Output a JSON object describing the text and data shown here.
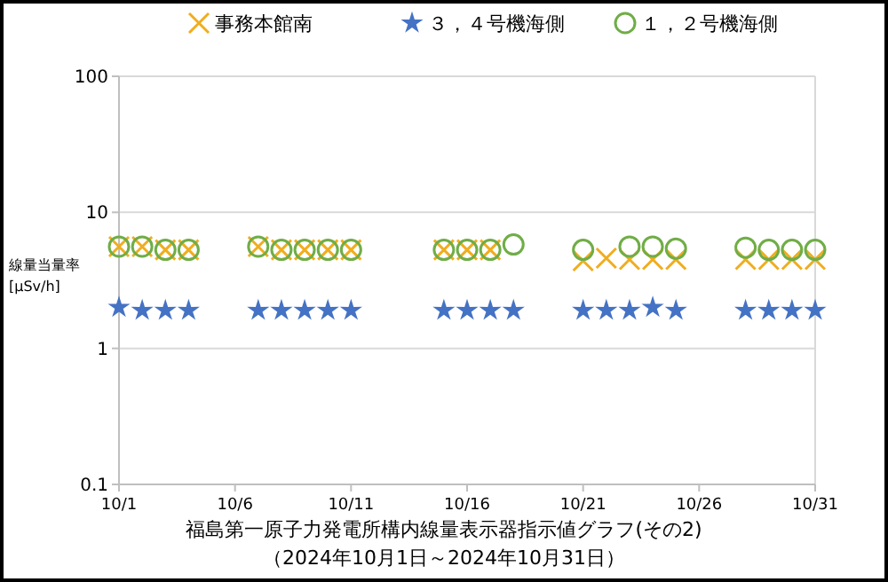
{
  "chart_data": {
    "type": "scatter",
    "title": "福島第一原子力発電所構内線量表示器指示値グラフ(その2)",
    "subtitle": "（2024年10月1日～2024年10月31日）",
    "ylabel": "線量当量率\n[μSv/h]",
    "x": [
      "2024-10-01",
      "2024-10-02",
      "2024-10-03",
      "2024-10-04",
      "2024-10-07",
      "2024-10-08",
      "2024-10-09",
      "2024-10-10",
      "2024-10-11",
      "2024-10-15",
      "2024-10-16",
      "2024-10-17",
      "2024-10-18",
      "2024-10-21",
      "2024-10-22",
      "2024-10-23",
      "2024-10-24",
      "2024-10-25",
      "2024-10-28",
      "2024-10-29",
      "2024-10-30",
      "2024-10-31"
    ],
    "series": [
      {
        "name": "事務本館南",
        "color": "#f0ad1e",
        "marker": "cross",
        "values": [
          5.6,
          5.6,
          5.3,
          5.3,
          5.6,
          5.3,
          5.3,
          5.3,
          5.3,
          5.3,
          5.3,
          5.3,
          null,
          4.4,
          4.6,
          4.5,
          4.5,
          4.5,
          4.5,
          4.5,
          4.5,
          4.5
        ]
      },
      {
        "name": "３，４号機海側",
        "color": "#4472c4",
        "marker": "star",
        "values": [
          2.0,
          1.9,
          1.9,
          1.9,
          1.9,
          1.9,
          1.9,
          1.9,
          1.9,
          1.9,
          1.9,
          1.9,
          1.9,
          1.9,
          1.9,
          1.9,
          2.0,
          1.9,
          1.9,
          1.9,
          1.9,
          1.9
        ]
      },
      {
        "name": "１，２号機海側",
        "color": "#70ad47",
        "marker": "circle",
        "values": [
          5.6,
          5.6,
          5.3,
          5.3,
          5.6,
          5.3,
          5.3,
          5.3,
          5.3,
          5.3,
          5.3,
          5.3,
          5.8,
          5.3,
          null,
          5.6,
          5.6,
          5.4,
          5.5,
          5.3,
          5.3,
          5.3
        ]
      }
    ],
    "xlim": [
      "2024-10-01",
      "2024-10-31"
    ],
    "xticks": [
      {
        "value": "2024-10-01",
        "label": "10/1"
      },
      {
        "value": "2024-10-06",
        "label": "10/6"
      },
      {
        "value": "2024-10-11",
        "label": "10/11"
      },
      {
        "value": "2024-10-16",
        "label": "10/16"
      },
      {
        "value": "2024-10-21",
        "label": "10/21"
      },
      {
        "value": "2024-10-26",
        "label": "10/26"
      },
      {
        "value": "2024-10-31",
        "label": "10/31"
      }
    ],
    "ylim": [
      0.1,
      100
    ],
    "yticks": [
      0.1,
      1,
      10,
      100
    ],
    "log": true,
    "grid": "y",
    "legend": "top"
  }
}
